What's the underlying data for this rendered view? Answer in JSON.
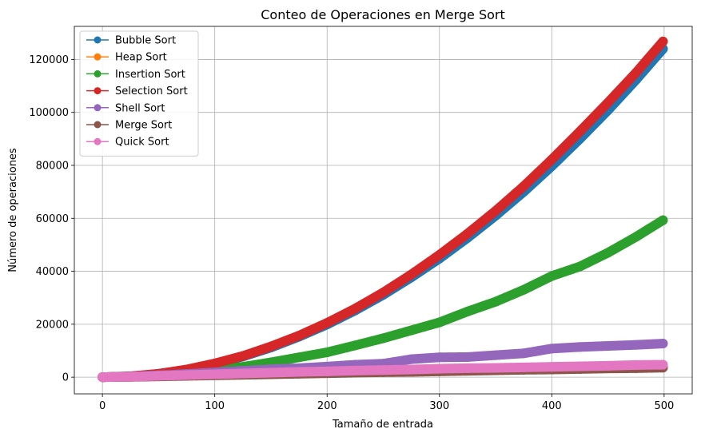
{
  "chart_data": {
    "type": "line",
    "title": "Conteo de Operaciones en Merge Sort",
    "xlabel": "Tamaño de entrada",
    "ylabel": "Número de operaciones",
    "xlim": [
      -25,
      525
    ],
    "ylim": [
      -6300,
      132500
    ],
    "xticks": [
      0,
      100,
      200,
      300,
      400,
      500
    ],
    "xtick_labels": [
      "0",
      "100",
      "200",
      "300",
      "400",
      "500"
    ],
    "yticks": [
      0,
      20000,
      40000,
      60000,
      80000,
      100000,
      120000
    ],
    "ytick_labels": [
      "0",
      "20000",
      "40000",
      "60000",
      "80000",
      "100000",
      "120000"
    ],
    "grid": true,
    "legend_position": "upper left",
    "x": [
      0,
      25,
      50,
      75,
      100,
      125,
      150,
      175,
      200,
      225,
      250,
      275,
      300,
      325,
      350,
      375,
      400,
      425,
      450,
      475,
      499
    ],
    "series": [
      {
        "name": "Bubble Sort",
        "color": "#1f77b4",
        "values": [
          0,
          300,
          1200,
          2800,
          5000,
          7800,
          11200,
          15300,
          19900,
          25200,
          31100,
          37700,
          44800,
          52600,
          61000,
          70000,
          79700,
          90000,
          100800,
          112300,
          124000
        ]
      },
      {
        "name": "Heap Sort",
        "color": "#ff7f0e",
        "values": [
          0,
          150,
          400,
          700,
          1000,
          1300,
          1600,
          1800,
          2000,
          2300,
          2500,
          2600,
          2800,
          3000,
          3100,
          3300,
          3400,
          3500,
          3700,
          3800,
          3900
        ]
      },
      {
        "name": "Insertion Sort",
        "color": "#2ca02c",
        "values": [
          0,
          200,
          700,
          1400,
          2500,
          3900,
          5600,
          7500,
          9400,
          12000,
          14700,
          17700,
          20700,
          24800,
          28500,
          33000,
          38200,
          41800,
          47000,
          53000,
          59300
        ]
      },
      {
        "name": "Selection Sort",
        "color": "#d62728",
        "values": [
          0,
          350,
          1300,
          2900,
          5200,
          8000,
          11600,
          15700,
          20500,
          25900,
          32000,
          38800,
          46200,
          54200,
          62800,
          72100,
          82200,
          92800,
          103700,
          115000,
          126800
        ]
      },
      {
        "name": "Shell Sort",
        "color": "#9467bd",
        "values": [
          0,
          250,
          700,
          1200,
          1800,
          2400,
          3000,
          3400,
          4000,
          4700,
          5100,
          6800,
          7500,
          7600,
          8300,
          9000,
          10800,
          11400,
          11800,
          12200,
          12700
        ]
      },
      {
        "name": "Merge Sort",
        "color": "#8c564b",
        "values": [
          0,
          100,
          300,
          500,
          700,
          900,
          1100,
          1300,
          1500,
          1700,
          1900,
          2000,
          2200,
          2400,
          2600,
          2800,
          2900,
          3100,
          3300,
          3400,
          3600
        ]
      },
      {
        "name": "Quick Sort",
        "color": "#e377c2",
        "values": [
          0,
          150,
          500,
          800,
          1100,
          1400,
          1700,
          2000,
          2200,
          2500,
          2700,
          2900,
          3200,
          3400,
          3500,
          3700,
          3900,
          4100,
          4300,
          4600,
          4700
        ]
      }
    ]
  }
}
